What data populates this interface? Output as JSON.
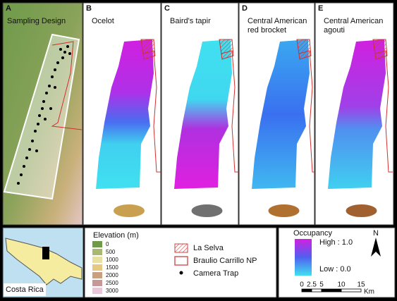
{
  "panels": [
    {
      "letter": "A",
      "title_lines": [
        "Sampling Design"
      ]
    },
    {
      "letter": "B",
      "title_lines": [
        "Ocelot"
      ]
    },
    {
      "letter": "C",
      "title_lines": [
        "Baird's tapir"
      ]
    },
    {
      "letter": "D",
      "title_lines": [
        "Central American",
        "red brocket"
      ]
    },
    {
      "letter": "E",
      "title_lines": [
        "Central American",
        "agouti"
      ]
    }
  ],
  "inset": {
    "label": "Costa Rica"
  },
  "elevation_legend": {
    "title": "Elevation (m)",
    "classes": [
      0,
      500,
      1000,
      1500,
      2000,
      2500,
      3000
    ]
  },
  "symbol_legend": {
    "items": [
      "La Selva",
      "Braulio Carrillo NP",
      "Camera Trap"
    ]
  },
  "occupancy_legend": {
    "title": "Occupancy",
    "high": "High : 1.0",
    "low": "Low : 0.0"
  },
  "north": "N",
  "scale_bar": {
    "ticks": [
      0,
      2.5,
      5,
      10,
      15
    ],
    "unit": "Km"
  }
}
